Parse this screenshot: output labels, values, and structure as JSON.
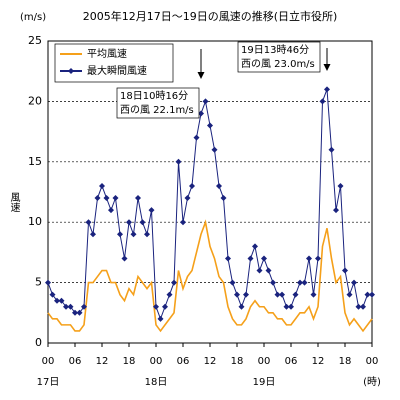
{
  "chart_data": {
    "type": "line",
    "title": "2005年12月17日～19日の風速の推移(日立市役所)",
    "y_unit": "(m/s)",
    "y_label": "風速",
    "x_unit": "(時)",
    "day_labels": [
      "17日",
      "18日",
      "19日"
    ],
    "x": [
      0,
      1,
      2,
      3,
      4,
      5,
      6,
      7,
      8,
      9,
      10,
      11,
      12,
      13,
      14,
      15,
      16,
      17,
      18,
      19,
      20,
      21,
      22,
      23,
      24,
      25,
      26,
      27,
      28,
      29,
      30,
      31,
      32,
      33,
      34,
      35,
      36,
      37,
      38,
      39,
      40,
      41,
      42,
      43,
      44,
      45,
      46,
      47,
      48,
      49,
      50,
      51,
      52,
      53,
      54,
      55,
      56,
      57,
      58,
      59,
      60,
      61,
      62,
      63,
      64,
      65,
      66,
      67,
      68,
      69,
      70,
      71,
      72
    ],
    "series": [
      {
        "name": "平均風速",
        "color": "#f5a01a",
        "marker": false,
        "values": [
          2.5,
          2,
          2,
          1.5,
          1.5,
          1.5,
          1,
          1,
          1.5,
          5,
          5,
          5.5,
          6,
          6,
          5,
          5,
          4,
          3.5,
          4.5,
          4,
          5.5,
          5,
          4.5,
          5,
          1.5,
          1,
          1.5,
          2,
          2.5,
          6,
          4.5,
          5.5,
          6,
          7.5,
          9,
          10,
          8,
          7,
          5.5,
          5,
          3,
          2,
          1.5,
          1.5,
          2,
          3,
          3.5,
          3,
          3,
          2.5,
          2.5,
          2,
          2,
          1.5,
          1.5,
          2,
          2.5,
          2.5,
          3,
          2,
          3,
          8,
          9.5,
          7,
          5,
          5.5,
          2.5,
          1.5,
          2,
          1.5,
          1,
          1.5,
          2
        ]
      },
      {
        "name": "最大瞬間風速",
        "color": "#1a237e",
        "marker": true,
        "values": [
          5,
          4,
          3.5,
          3.5,
          3,
          3,
          2.5,
          2.5,
          3,
          10,
          9,
          12,
          13,
          12,
          11,
          12,
          9,
          7,
          10,
          9,
          12,
          10,
          9,
          11,
          3,
          2,
          3,
          4,
          5,
          15,
          10,
          12,
          13,
          17,
          19,
          20,
          18,
          16,
          13,
          12,
          7,
          5,
          4,
          3,
          4,
          7,
          8,
          6,
          7,
          6,
          5,
          4,
          4,
          3,
          3,
          4,
          5,
          5,
          7,
          4,
          7,
          20,
          21,
          16,
          11,
          13,
          6,
          4,
          5,
          3,
          3,
          4,
          4
        ]
      }
    ],
    "xlim": [
      0,
      72
    ],
    "xticks": [
      {
        "value": 0,
        "label": "00"
      },
      {
        "value": 6,
        "label": "06"
      },
      {
        "value": 12,
        "label": "12"
      },
      {
        "value": 18,
        "label": "18"
      },
      {
        "value": 24,
        "label": "00"
      },
      {
        "value": 30,
        "label": "06"
      },
      {
        "value": 36,
        "label": "12"
      },
      {
        "value": 42,
        "label": "18"
      },
      {
        "value": 48,
        "label": "00"
      },
      {
        "value": 54,
        "label": "06"
      },
      {
        "value": 60,
        "label": "12"
      },
      {
        "value": 66,
        "label": "18"
      },
      {
        "value": 72,
        "label": "00"
      }
    ],
    "ylim": [
      0,
      25
    ],
    "yticks": [
      0,
      5,
      10,
      15,
      20,
      25
    ],
    "grid": true,
    "annotations": [
      {
        "lines": [
          "18日10時16分",
          "西の風 22.1m/s"
        ],
        "x": 34
      },
      {
        "lines": [
          "19日13時46分",
          "西の風 23.0m/s"
        ],
        "x": 62
      }
    ]
  }
}
